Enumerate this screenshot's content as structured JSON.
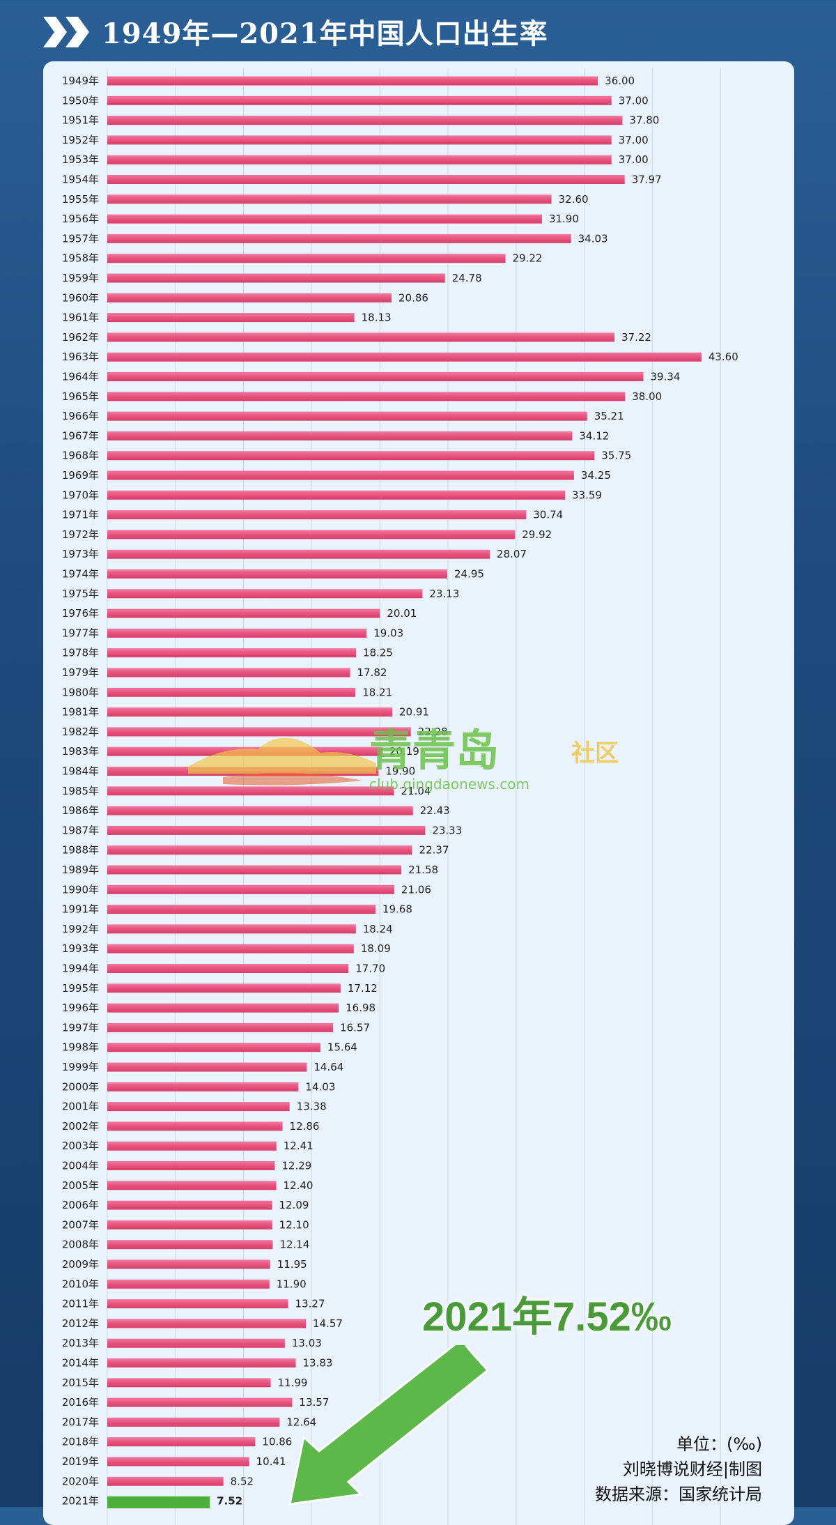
{
  "header": {
    "title": "1949年—2021年中国人口出生率"
  },
  "chart_data": {
    "type": "bar",
    "orientation": "horizontal",
    "title": "1949年—2021年中国人口出生率",
    "categories": [
      "1949年",
      "1950年",
      "1951年",
      "1952年",
      "1953年",
      "1954年",
      "1955年",
      "1956年",
      "1957年",
      "1958年",
      "1959年",
      "1960年",
      "1961年",
      "1962年",
      "1963年",
      "1964年",
      "1965年",
      "1966年",
      "1967年",
      "1968年",
      "1969年",
      "1970年",
      "1971年",
      "1972年",
      "1973年",
      "1974年",
      "1975年",
      "1976年",
      "1977年",
      "1978年",
      "1979年",
      "1980年",
      "1981年",
      "1982年",
      "1983年",
      "1984年",
      "1985年",
      "1986年",
      "1987年",
      "1988年",
      "1989年",
      "1990年",
      "1991年",
      "1992年",
      "1993年",
      "1994年",
      "1995年",
      "1996年",
      "1997年",
      "1998年",
      "1999年",
      "2000年",
      "2001年",
      "2002年",
      "2003年",
      "2004年",
      "2005年",
      "2006年",
      "2007年",
      "2008年",
      "2009年",
      "2010年",
      "2011年",
      "2012年",
      "2013年",
      "2014年",
      "2015年",
      "2016年",
      "2017年",
      "2018年",
      "2019年",
      "2020年",
      "2021年"
    ],
    "values": [
      36.0,
      37.0,
      37.8,
      37.0,
      37.0,
      37.97,
      32.6,
      31.9,
      34.03,
      29.22,
      24.78,
      20.86,
      18.13,
      37.22,
      43.6,
      39.34,
      38.0,
      35.21,
      34.12,
      35.75,
      34.25,
      33.59,
      30.74,
      29.92,
      28.07,
      24.95,
      23.13,
      20.01,
      19.03,
      18.25,
      17.82,
      18.21,
      20.91,
      22.28,
      20.19,
      19.9,
      21.04,
      22.43,
      23.33,
      22.37,
      21.58,
      21.06,
      19.68,
      18.24,
      18.09,
      17.7,
      17.12,
      16.98,
      16.57,
      15.64,
      14.64,
      14.03,
      13.38,
      12.86,
      12.41,
      12.29,
      12.4,
      12.09,
      12.1,
      12.14,
      11.95,
      11.9,
      13.27,
      14.57,
      13.03,
      13.83,
      11.99,
      13.57,
      12.64,
      10.86,
      10.41,
      8.52,
      7.52
    ],
    "value_labels": [
      "36.00",
      "37.00",
      "37.80",
      "37.00",
      "37.00",
      "37.97",
      "32.60",
      "31.90",
      "34.03",
      "29.22",
      "24.78",
      "20.86",
      "18.13",
      "37.22",
      "43.60",
      "39.34",
      "38.00",
      "35.21",
      "34.12",
      "35.75",
      "34.25",
      "33.59",
      "30.74",
      "29.92",
      "28.07",
      "24.95",
      "23.13",
      "20.01",
      "19.03",
      "18.25",
      "17.82",
      "18.21",
      "20.91",
      "22.28",
      "20.19",
      "19.90",
      "21.04",
      "22.43",
      "23.33",
      "22.37",
      "21.58",
      "21.06",
      "19.68",
      "18.24",
      "18.09",
      "17.70",
      "17.12",
      "16.98",
      "16.57",
      "15.64",
      "14.64",
      "14.03",
      "13.38",
      "12.86",
      "12.41",
      "12.29",
      "12.40",
      "12.09",
      "12.10",
      "12.14",
      "11.95",
      "11.90",
      "13.27",
      "14.57",
      "13.03",
      "13.83",
      "11.99",
      "13.57",
      "12.64",
      "10.86",
      "10.41",
      "8.52",
      "7.52"
    ],
    "xlim": [
      0,
      45
    ],
    "grid": true,
    "bar_color": "#e8527e",
    "highlight_color": "#4caf3c",
    "highlight_index": 72
  },
  "annotation": {
    "highlight_text": "2021年7.52‰"
  },
  "watermark": {
    "logo_text": "青青岛",
    "logo_suffix": "社区",
    "url": "club.qingdaonews.com"
  },
  "footer": {
    "unit": "单位：(‰)",
    "credit": "刘晓博说财经|制图",
    "source": "数据来源：国家统计局"
  },
  "colors": {
    "background": "#1d4a7d",
    "panel": "#eaf3fb",
    "title": "#ffffff"
  }
}
